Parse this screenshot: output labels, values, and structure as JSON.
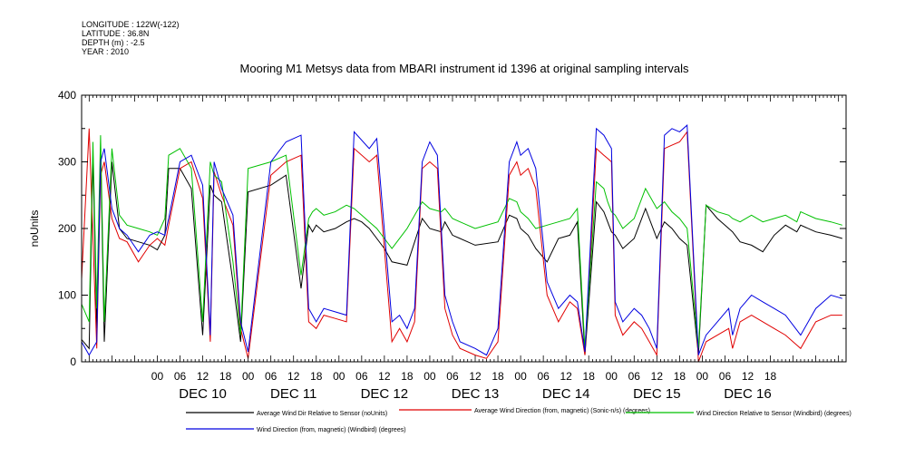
{
  "meta": [
    "LONGITUDE : 122W(-122)",
    "LATITUDE : 36.8N",
    "DEPTH (m) : -2.5",
    "YEAR : 2010"
  ],
  "chart_data": {
    "type": "line",
    "title": "Mooring M1 Metsys data from MBARI instrument id 1396 at original sampling intervals",
    "xlabel": "",
    "ylabel": "noUnits",
    "ylim": [
      0,
      400
    ],
    "y_ticks": [
      0,
      100,
      200,
      300,
      400
    ],
    "x_range_hours": [
      -20,
      182
    ],
    "x_hour_ticks": [
      "00",
      "06",
      "12",
      "18",
      "00",
      "06",
      "12",
      "18",
      "00",
      "06",
      "12",
      "18",
      "00",
      "06",
      "12",
      "18",
      "00",
      "06",
      "12",
      "18",
      "00",
      "06",
      "12",
      "18",
      "00",
      "06",
      "12",
      "18"
    ],
    "x_day_labels": [
      "DEC 10",
      "DEC 11",
      "DEC 12",
      "DEC 13",
      "DEC 14",
      "DEC 15",
      "DEC 16"
    ],
    "grid": false,
    "legend_position": "bottom",
    "series": [
      {
        "name": "Average Wind Dir Relative to Sensor (noUnits)",
        "color": "#000000",
        "x": [
          -21,
          -18,
          -17,
          -16,
          -15,
          -14,
          -12,
          -10,
          -8,
          -5,
          -2,
          0,
          2,
          3,
          6,
          9,
          12,
          14,
          15,
          17,
          20,
          22,
          24,
          30,
          34,
          38,
          40,
          41,
          42,
          44,
          47,
          50,
          52,
          54,
          56,
          58,
          60,
          62,
          66,
          70,
          72,
          75,
          76,
          78,
          80,
          84,
          90,
          93,
          95,
          96,
          98,
          100,
          103,
          106,
          109,
          111,
          113,
          116,
          118,
          119,
          120,
          121,
          123,
          126,
          129,
          132,
          134,
          136,
          138,
          140,
          143,
          145,
          148,
          151,
          152,
          154,
          157,
          160,
          163,
          166,
          169,
          170,
          174,
          178,
          181
        ],
        "y": [
          40,
          20,
          310,
          50,
          320,
          30,
          300,
          200,
          185,
          180,
          175,
          168,
          190,
          290,
          290,
          260,
          40,
          265,
          250,
          240,
          120,
          30,
          255,
          265,
          280,
          110,
          205,
          195,
          205,
          195,
          200,
          210,
          215,
          210,
          200,
          185,
          170,
          150,
          145,
          215,
          200,
          195,
          210,
          190,
          185,
          175,
          180,
          220,
          215,
          200,
          190,
          170,
          150,
          185,
          190,
          210,
          10,
          240,
          225,
          210,
          195,
          190,
          170,
          185,
          230,
          185,
          210,
          200,
          185,
          175,
          10,
          235,
          215,
          200,
          195,
          180,
          175,
          165,
          190,
          205,
          195,
          205,
          195,
          190,
          185
        ]
      },
      {
        "name": "Average Wind Direction (from, magnetic) (Sonic-n/s) (degrees)",
        "color": "#e00000",
        "x": [
          -21,
          -18,
          -16,
          -15,
          -14,
          -12,
          -10,
          -8,
          -5,
          -2,
          0,
          2,
          3,
          6,
          9,
          12,
          14,
          15,
          17,
          20,
          22,
          24,
          30,
          34,
          38,
          40,
          41,
          42,
          44,
          47,
          50,
          52,
          56,
          58,
          62,
          64,
          66,
          68,
          70,
          72,
          74,
          76,
          78,
          80,
          84,
          87,
          90,
          93,
          95,
          96,
          98,
          100,
          103,
          106,
          109,
          111,
          113,
          116,
          118,
          119,
          120,
          121,
          123,
          126,
          128,
          130,
          132,
          134,
          136,
          138,
          140,
          143,
          145,
          148,
          151,
          152,
          154,
          157,
          160,
          163,
          166,
          170,
          174,
          178,
          181
        ],
        "y": [
          10,
          350,
          20,
          280,
          300,
          215,
          185,
          180,
          150,
          175,
          185,
          175,
          205,
          290,
          300,
          245,
          30,
          285,
          250,
          205,
          50,
          5,
          280,
          300,
          310,
          60,
          55,
          50,
          70,
          65,
          60,
          320,
          300,
          310,
          30,
          50,
          30,
          60,
          290,
          300,
          290,
          80,
          40,
          20,
          10,
          5,
          30,
          280,
          300,
          280,
          290,
          260,
          100,
          60,
          90,
          80,
          10,
          320,
          310,
          305,
          300,
          70,
          40,
          60,
          50,
          30,
          10,
          320,
          325,
          330,
          345,
          0,
          30,
          40,
          50,
          20,
          60,
          70,
          60,
          50,
          40,
          20,
          60,
          70,
          70
        ]
      },
      {
        "name": "Wind Direction Relative to Sensor (Windbird) (degrees)",
        "color": "#00c000",
        "x": [
          -21,
          -18,
          -17,
          -16,
          -15,
          -14,
          -12,
          -10,
          -8,
          -5,
          -2,
          0,
          2,
          3,
          6,
          9,
          12,
          14,
          15,
          17,
          20,
          22,
          24,
          30,
          34,
          38,
          40,
          41,
          42,
          44,
          47,
          50,
          52,
          54,
          56,
          58,
          60,
          62,
          66,
          70,
          72,
          75,
          76,
          78,
          80,
          84,
          90,
          93,
          95,
          96,
          98,
          100,
          103,
          106,
          109,
          111,
          113,
          116,
          118,
          119,
          120,
          121,
          123,
          126,
          129,
          132,
          134,
          136,
          138,
          140,
          143,
          145,
          148,
          151,
          152,
          154,
          157,
          160,
          163,
          166,
          169,
          170,
          174,
          178,
          181
        ],
        "y": [
          100,
          60,
          330,
          80,
          340,
          60,
          320,
          220,
          205,
          200,
          195,
          190,
          215,
          310,
          320,
          290,
          60,
          300,
          280,
          270,
          150,
          40,
          290,
          300,
          310,
          130,
          215,
          225,
          230,
          220,
          225,
          235,
          230,
          220,
          210,
          200,
          185,
          170,
          200,
          240,
          230,
          225,
          230,
          215,
          210,
          200,
          210,
          245,
          240,
          225,
          215,
          200,
          205,
          210,
          215,
          230,
          20,
          270,
          260,
          240,
          225,
          220,
          200,
          215,
          260,
          230,
          240,
          225,
          215,
          200,
          20,
          235,
          225,
          220,
          215,
          210,
          220,
          210,
          215,
          220,
          210,
          225,
          215,
          210,
          205
        ]
      },
      {
        "name": "Wind Direction (from, magnetic) (Windbird) (degrees)",
        "color": "#0000e0",
        "x": [
          -21,
          -18,
          -16,
          -15,
          -14,
          -12,
          -10,
          -8,
          -5,
          -2,
          0,
          2,
          3,
          6,
          9,
          12,
          14,
          15,
          17,
          20,
          22,
          24,
          30,
          34,
          38,
          40,
          41,
          42,
          44,
          47,
          50,
          52,
          56,
          58,
          62,
          64,
          66,
          68,
          70,
          72,
          74,
          76,
          78,
          80,
          84,
          87,
          90,
          93,
          95,
          96,
          98,
          100,
          103,
          106,
          109,
          111,
          113,
          116,
          118,
          119,
          120,
          121,
          123,
          126,
          128,
          130,
          132,
          134,
          136,
          138,
          140,
          143,
          145,
          148,
          151,
          152,
          154,
          157,
          160,
          163,
          166,
          170,
          174,
          178,
          181
        ],
        "y": [
          40,
          10,
          30,
          300,
          320,
          230,
          200,
          190,
          165,
          190,
          195,
          190,
          215,
          300,
          310,
          265,
          40,
          300,
          260,
          220,
          60,
          15,
          300,
          330,
          340,
          80,
          70,
          60,
          80,
          75,
          70,
          345,
          320,
          335,
          60,
          70,
          50,
          80,
          300,
          330,
          310,
          100,
          60,
          30,
          20,
          10,
          50,
          300,
          330,
          310,
          320,
          290,
          120,
          80,
          100,
          90,
          15,
          350,
          340,
          330,
          320,
          90,
          60,
          80,
          70,
          50,
          20,
          340,
          350,
          345,
          355,
          10,
          40,
          60,
          80,
          40,
          80,
          100,
          90,
          80,
          70,
          40,
          80,
          100,
          95
        ]
      }
    ]
  }
}
